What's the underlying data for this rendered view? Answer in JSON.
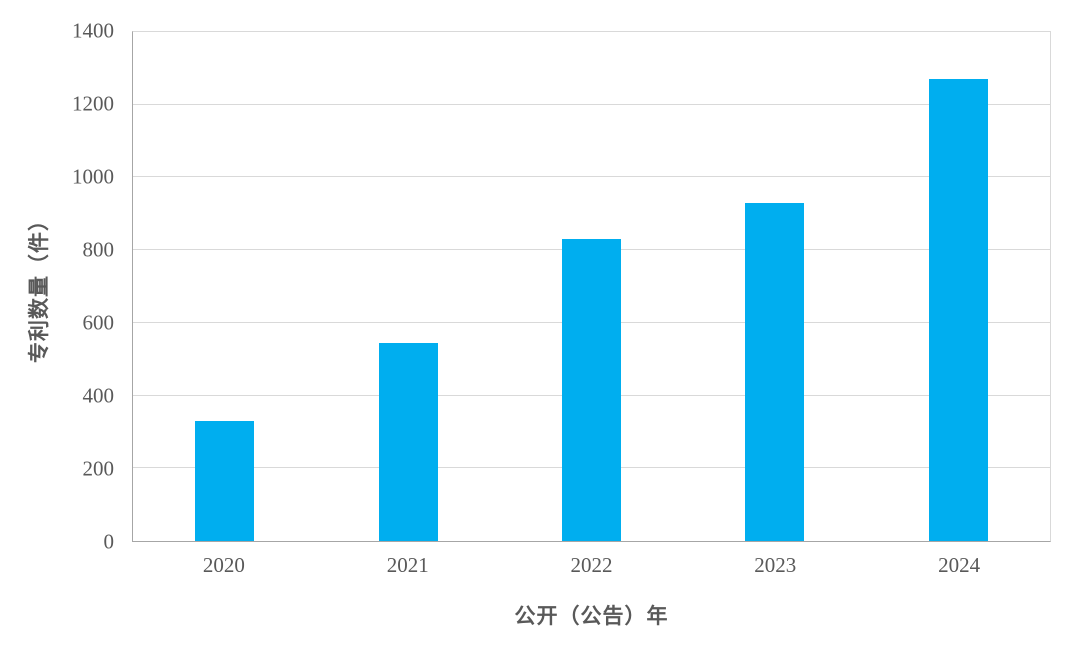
{
  "chart_data": {
    "type": "bar",
    "categories": [
      "2020",
      "2021",
      "2022",
      "2023",
      "2024"
    ],
    "values": [
      330,
      545,
      830,
      930,
      1270
    ],
    "title": "",
    "xlabel": "公开（公告）年",
    "ylabel": "专利数量（件）",
    "ylim": [
      0,
      1400
    ],
    "yticks": [
      0,
      200,
      400,
      600,
      800,
      1000,
      1200,
      1400
    ],
    "grid": true,
    "legend": "none",
    "colors": {
      "bar": "#00AEEF",
      "gridline": "#D9D9D9",
      "axis": "#A6A6A6",
      "text": "#595959",
      "background": "#FFFFFF"
    }
  }
}
